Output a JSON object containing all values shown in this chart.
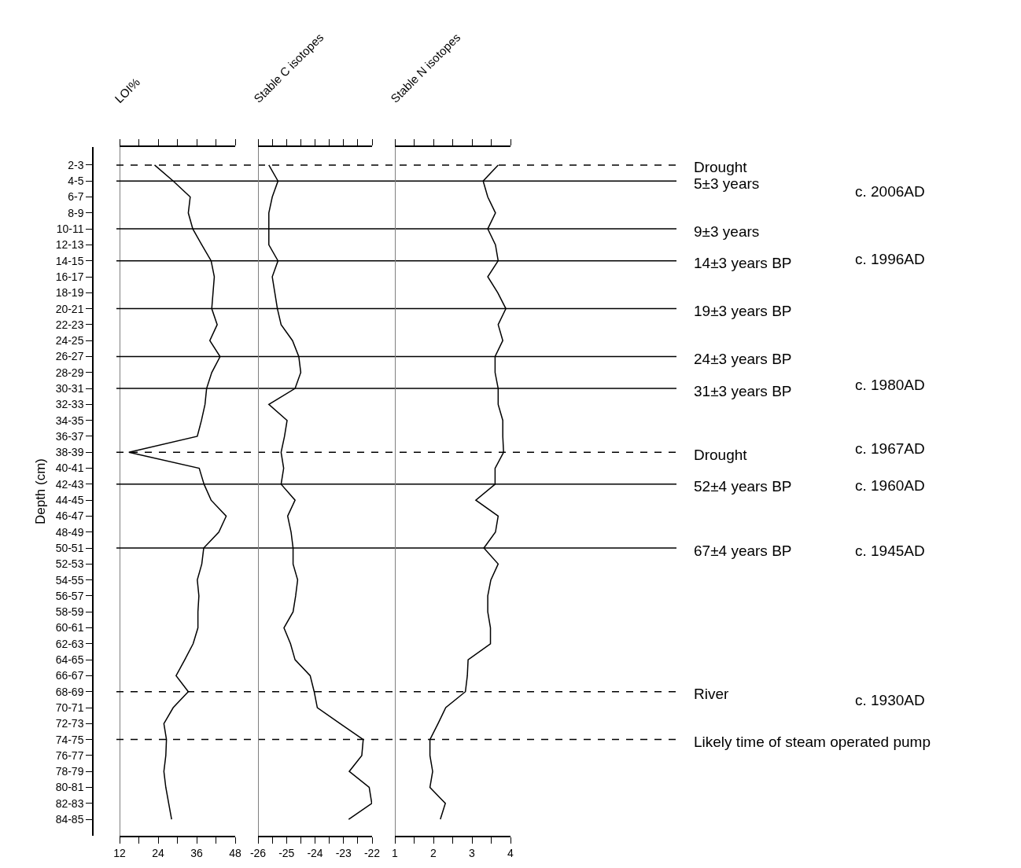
{
  "chart_data": [
    {
      "type": "line",
      "orientation": "horizontal",
      "xlabel": "LOI%",
      "ylabel": "Depth (cm)",
      "marker": "none",
      "line_style": "solid",
      "color": "#000000",
      "categories": [
        "2-3",
        "4-5",
        "6-7",
        "8-9",
        "10-11",
        "12-13",
        "14-15",
        "16-17",
        "18-19",
        "20-21",
        "22-23",
        "24-25",
        "26-27",
        "28-29",
        "30-31",
        "32-33",
        "34-35",
        "36-37",
        "38-39",
        "40-41",
        "42-43",
        "44-45",
        "46-47",
        "48-49",
        "50-51",
        "52-53",
        "54-55",
        "56-57",
        "58-59",
        "60-61",
        "62-63",
        "64-65",
        "66-67",
        "68-69",
        "70-71",
        "72-73",
        "74-75",
        "76-77",
        "78-79",
        "80-81",
        "82-83",
        "84-85"
      ],
      "values": [
        22.9,
        28.7,
        34.0,
        33.4,
        34.8,
        37.6,
        40.5,
        41.5,
        41.1,
        40.7,
        42.4,
        40.1,
        43.3,
        40.7,
        39.1,
        38.6,
        37.5,
        36.2,
        14.9,
        36.8,
        38.3,
        40.5,
        45.2,
        42.9,
        38.2,
        37.6,
        36.2,
        36.7,
        36.4,
        36.4,
        34.9,
        32.3,
        29.6,
        33.4,
        28.7,
        25.8,
        26.6,
        26.4,
        25.8,
        26.4,
        27.3,
        28.2
      ],
      "xlim": [
        12,
        48
      ],
      "xticks": [
        12,
        {
          "value": 18,
          "label": null
        },
        24,
        {
          "value": 30,
          "label": null
        },
        36,
        {
          "value": 42,
          "label": null
        },
        48
      ],
      "ref_lines": [
        {
          "axis": "y",
          "value": "2-3",
          "label": "Drought",
          "line_style": "dashed"
        },
        {
          "axis": "y",
          "value": "4-5",
          "label": "5±3 years",
          "line_style": "solid"
        },
        {
          "axis": "y",
          "value": "10-11",
          "label": "9±3 years",
          "line_style": "solid"
        },
        {
          "axis": "y",
          "value": "14-15",
          "label": "14±3 years BP",
          "line_style": "solid"
        },
        {
          "axis": "y",
          "value": "20-21",
          "label": "19±3 years BP",
          "line_style": "solid"
        },
        {
          "axis": "y",
          "value": "26-27",
          "label": "24±3 years BP",
          "line_style": "solid"
        },
        {
          "axis": "y",
          "value": "30-31",
          "label": "31±3 years BP",
          "line_style": "solid"
        },
        {
          "axis": "y",
          "value": "38-39",
          "label": "Drought",
          "line_style": "dashed"
        },
        {
          "axis": "y",
          "value": "42-43",
          "label": "52±4 years BP",
          "line_style": "solid"
        },
        {
          "axis": "y",
          "value": "50-51",
          "label": "67±4 years BP",
          "line_style": "solid"
        },
        {
          "axis": "y",
          "value": "68-69",
          "label": "River",
          "line_style": "dashed"
        },
        {
          "axis": "y",
          "value": "74-75",
          "label": "Likely time of steam operated pump",
          "line_style": "dashed"
        }
      ],
      "annotations": [
        "c. 2006AD",
        "c. 1996AD",
        "c. 1980AD",
        "c. 1967AD",
        "c. 1960AD",
        "c. 1945AD",
        "c. 1930AD"
      ]
    },
    {
      "type": "line",
      "orientation": "horizontal",
      "xlabel": "Stable C isotopes",
      "marker": "none",
      "line_style": "solid",
      "color": "#000000",
      "tick_labels": "x",
      "categories": [
        "2-3",
        "4-5",
        "6-7",
        "8-9",
        "10-11",
        "12-13",
        "14-15",
        "16-17",
        "18-19",
        "20-21",
        "22-23",
        "24-25",
        "26-27",
        "28-29",
        "30-31",
        "32-33",
        "34-35",
        "36-37",
        "38-39",
        "40-41",
        "42-43",
        "44-45",
        "46-47",
        "48-49",
        "50-51",
        "52-53",
        "54-55",
        "56-57",
        "58-59",
        "60-61",
        "62-63",
        "64-65",
        "66-67",
        "68-69",
        "70-71",
        "72-73",
        "74-75",
        "76-77",
        "78-79",
        "80-81",
        "82-83",
        "84-85"
      ],
      "values": [
        -25.62,
        -25.3,
        -25.5,
        -25.62,
        -25.62,
        -25.62,
        -25.3,
        -25.5,
        -25.41,
        -25.32,
        -25.19,
        -24.79,
        -24.57,
        -24.5,
        -24.7,
        -25.62,
        -24.98,
        -25.07,
        -25.19,
        -25.1,
        -25.19,
        -24.7,
        -24.96,
        -24.84,
        -24.77,
        -24.77,
        -24.61,
        -24.68,
        -24.77,
        -25.09,
        -24.86,
        -24.7,
        -24.17,
        -24.03,
        -23.92,
        -23.12,
        -22.31,
        -22.36,
        -22.8,
        -22.1,
        -22.01,
        -22.82
      ],
      "xlim": [
        -26,
        -22
      ],
      "xticks": [
        -26,
        {
          "value": -25.5,
          "label": null
        },
        -25,
        {
          "value": -24.5,
          "label": null
        },
        -24,
        {
          "value": -23.5,
          "label": null
        },
        -23,
        {
          "value": -22.5,
          "label": null
        },
        -22
      ]
    },
    {
      "type": "line",
      "orientation": "horizontal",
      "xlabel": "Stable N isotopes",
      "marker": "none",
      "line_style": "solid",
      "color": "#000000",
      "tick_labels": "x",
      "categories": [
        "2-3",
        "4-5",
        "6-7",
        "8-9",
        "10-11",
        "12-13",
        "14-15",
        "16-17",
        "18-19",
        "20-21",
        "22-23",
        "24-25",
        "26-27",
        "28-29",
        "30-31",
        "32-33",
        "34-35",
        "36-37",
        "38-39",
        "40-41",
        "42-43",
        "44-45",
        "46-47",
        "48-49",
        "50-51",
        "52-53",
        "54-55",
        "56-57",
        "58-59",
        "60-61",
        "62-63",
        "64-65",
        "66-67",
        "68-69",
        "70-71",
        "72-73",
        "74-75",
        "76-77",
        "78-79",
        "80-81",
        "82-83",
        "84-85"
      ],
      "values": [
        3.68,
        3.29,
        3.41,
        3.61,
        3.41,
        3.61,
        3.68,
        3.41,
        3.67,
        3.88,
        3.68,
        3.8,
        3.6,
        3.6,
        3.68,
        3.68,
        3.8,
        3.8,
        3.82,
        3.6,
        3.6,
        3.1,
        3.68,
        3.61,
        3.31,
        3.68,
        3.49,
        3.41,
        3.41,
        3.48,
        3.48,
        2.9,
        2.88,
        2.83,
        2.32,
        2.12,
        1.91,
        1.91,
        1.98,
        1.91,
        2.31,
        2.18
      ],
      "xlim": [
        1,
        4
      ],
      "xticks": [
        1,
        {
          "value": 1.5,
          "label": null
        },
        2,
        {
          "value": 2.5,
          "label": null
        },
        3,
        {
          "value": 3.5,
          "label": null
        },
        4
      ]
    }
  ]
}
